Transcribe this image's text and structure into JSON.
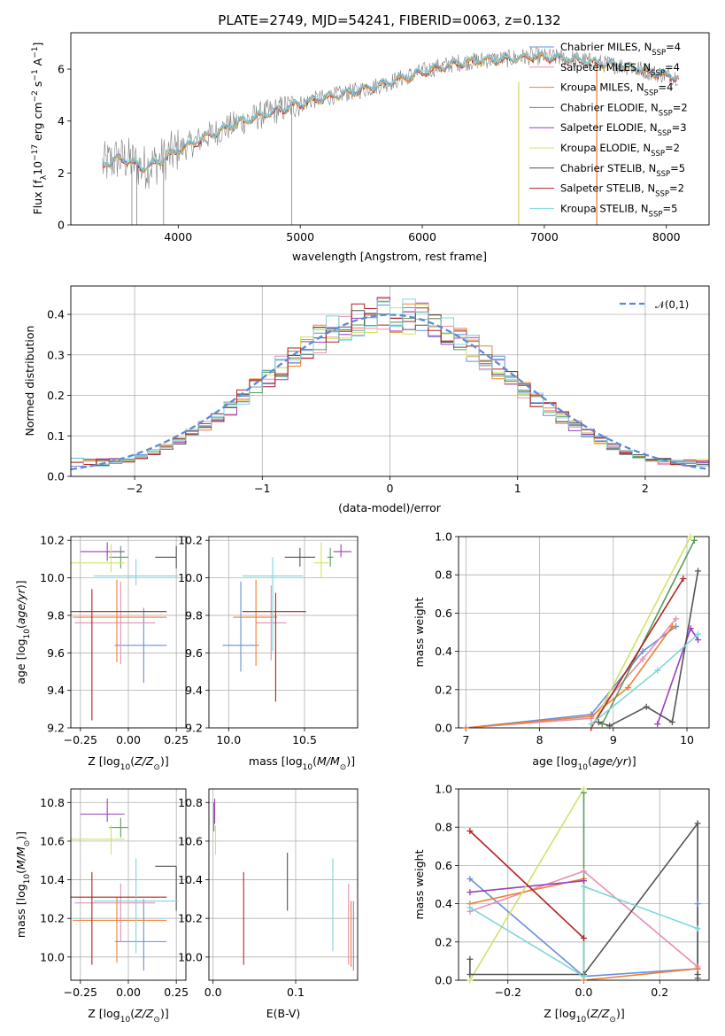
{
  "figure_title": "PLATE=2749, MJD=54241, FIBERID=0063, z=0.132",
  "colors": {
    "Chabrier MILES": "#6a8fd8",
    "Salpeter MILES": "#e58fb4",
    "Kroupa MILES": "#ee8030",
    "Chabrier ELODIE": "#5c9a5c",
    "Salpeter ELODIE": "#9b3fbe",
    "Kroupa ELODIE": "#cfe36a",
    "Chabrier STELIB": "#555555",
    "Salpeter STELIB": "#b22222",
    "Kroupa STELIB": "#7fd6dc",
    "gauss": "#5b8bd6",
    "grid": "#b0b0b0"
  },
  "chart_data": [
    {
      "id": "spectrum",
      "type": "line",
      "title": "PLATE=2749, MJD=54241, FIBERID=0063, z=0.132",
      "xlabel": "wavelength [Angstrom, rest frame]",
      "ylabel": "Flux [f_λ 10^-17 erg cm^-2 s^-1 A^-1]",
      "xlim": [
        3120,
        8350
      ],
      "ylim": [
        0,
        7.4
      ],
      "xticks": [
        4000,
        5000,
        6000,
        7000,
        8000
      ],
      "yticks": [
        0,
        2,
        4,
        6
      ],
      "grid": false,
      "legend_loc": "upper right",
      "legend": [
        {
          "model": "Chabrier MILES",
          "label": "Chabrier MILES, N",
          "sub": "SSP",
          "suffix": "=4"
        },
        {
          "model": "Salpeter MILES",
          "label": "Salpeter MILES, N",
          "sub": "SSP",
          "suffix": "=4"
        },
        {
          "model": "Kroupa MILES",
          "label": "Kroupa MILES, N",
          "sub": "SSP",
          "suffix": "=4"
        },
        {
          "model": "Chabrier ELODIE",
          "label": "Chabrier ELODIE, N",
          "sub": "SSP",
          "suffix": "=2"
        },
        {
          "model": "Salpeter ELODIE",
          "label": "Salpeter ELODIE, N",
          "sub": "SSP",
          "suffix": "=3"
        },
        {
          "model": "Kroupa ELODIE",
          "label": "Kroupa ELODIE, N",
          "sub": "SSP",
          "suffix": "=2"
        },
        {
          "model": "Chabrier STELIB",
          "label": "Chabrier STELIB, N",
          "sub": "SSP",
          "suffix": "=5"
        },
        {
          "model": "Salpeter STELIB",
          "label": "Salpeter STELIB, N",
          "sub": "SSP",
          "suffix": "=2"
        },
        {
          "model": "Kroupa STELIB",
          "label": "Kroupa STELIB, N",
          "sub": "SSP",
          "suffix": "=5"
        }
      ],
      "continuum": {
        "x": [
          3380,
          3500,
          3600,
          3700,
          3800,
          3900,
          4000,
          4100,
          4200,
          4300,
          4400,
          4500,
          4700,
          4900,
          5100,
          5300,
          5500,
          5700,
          5900,
          6100,
          6300,
          6500,
          6700,
          6900,
          7100,
          7300,
          7500,
          7700,
          7900,
          8100
        ],
        "y": [
          2.3,
          2.55,
          2.5,
          2.2,
          2.35,
          2.6,
          2.9,
          3.1,
          3.35,
          3.55,
          3.75,
          3.95,
          4.25,
          4.55,
          4.8,
          5.0,
          5.2,
          5.45,
          5.75,
          6.05,
          6.25,
          6.35,
          6.4,
          6.5,
          6.45,
          6.35,
          6.2,
          6.1,
          5.85,
          5.7
        ]
      }
    },
    {
      "id": "residuals",
      "type": "bar",
      "title": "",
      "xlabel": "(data-model)/error",
      "ylabel": "Normed distribution",
      "xlim": [
        -2.5,
        2.5
      ],
      "ylim": [
        0,
        0.47
      ],
      "xticks": [
        -2,
        -1,
        0,
        1,
        2
      ],
      "yticks": [
        0.0,
        0.1,
        0.2,
        0.3,
        0.4
      ],
      "grid": true,
      "bin_width": 0.1,
      "gauss_label": "𝒩(0,1)",
      "legend_loc": "upper right"
    },
    {
      "id": "age_Z",
      "type": "scatter",
      "xlabel": "Z [log10(Z/Z_sun)]",
      "ylabel": "age [log10(age/yr)]",
      "xlim": [
        -0.3,
        0.3
      ],
      "ylim": [
        9.2,
        10.22
      ],
      "xticks": [
        -0.25,
        0.0,
        0.25
      ],
      "yticks": [
        9.2,
        9.4,
        9.6,
        9.8,
        10.0,
        10.2
      ],
      "grid": true,
      "points": [
        {
          "model": "Chabrier MILES",
          "x": 0.08,
          "xerr": [
            0.15,
            0.12
          ],
          "y": 9.64,
          "yerr": [
            0.2,
            0.2
          ]
        },
        {
          "model": "Salpeter MILES",
          "x": -0.04,
          "xerr": [
            0.24,
            0.18
          ],
          "y": 9.76,
          "yerr": [
            0.22,
            0.22
          ]
        },
        {
          "model": "Kroupa MILES",
          "x": -0.06,
          "xerr": [
            0.23,
            0.26
          ],
          "y": 9.79,
          "yerr": [
            0.24,
            0.2
          ]
        },
        {
          "model": "Chabrier ELODIE",
          "x": -0.04,
          "xerr": [
            0.06,
            0.04
          ],
          "y": 10.11,
          "yerr": [
            0.06,
            0.06
          ]
        },
        {
          "model": "Salpeter ELODIE",
          "x": -0.11,
          "xerr": [
            0.14,
            0.09
          ],
          "y": 10.14,
          "yerr": [
            0.05,
            0.05
          ]
        },
        {
          "model": "Kroupa ELODIE",
          "x": -0.09,
          "xerr": [
            0.21,
            0.07
          ],
          "y": 10.08,
          "yerr": [
            0.05,
            0.1
          ]
        },
        {
          "model": "Chabrier STELIB",
          "x": 0.25,
          "xerr": [
            0.11,
            0.0
          ],
          "y": 10.11,
          "yerr": [
            0.06,
            0.06
          ]
        },
        {
          "model": "Salpeter STELIB",
          "x": -0.19,
          "xerr": [
            0.11,
            0.39
          ],
          "y": 9.82,
          "yerr": [
            0.58,
            0.12
          ]
        },
        {
          "model": "Kroupa STELIB",
          "x": 0.04,
          "xerr": [
            0.22,
            0.22
          ],
          "y": 10.01,
          "yerr": [
            0.05,
            0.09
          ]
        }
      ]
    },
    {
      "id": "age_mass",
      "type": "scatter",
      "xlabel": "mass [log10(M/M_sun)]",
      "ylabel": "",
      "xlim": [
        9.87,
        10.85
      ],
      "ylim": [
        9.2,
        10.22
      ],
      "xticks": [
        10.0,
        10.5
      ],
      "yticks": [
        9.2,
        9.4,
        9.6,
        9.8,
        10.0,
        10.2
      ],
      "grid": true,
      "points": [
        {
          "model": "Chabrier MILES",
          "x": 10.08,
          "xerr": [
            0.12,
            0.12
          ],
          "y": 9.64,
          "yerr": [
            0.14,
            0.34
          ]
        },
        {
          "model": "Salpeter MILES",
          "x": 10.28,
          "xerr": [
            0.1,
            0.1
          ],
          "y": 9.76,
          "yerr": [
            0.2,
            0.2
          ]
        },
        {
          "model": "Kroupa MILES",
          "x": 10.18,
          "xerr": [
            0.15,
            0.14
          ],
          "y": 9.79,
          "yerr": [
            0.26,
            0.2
          ]
        },
        {
          "model": "Chabrier ELODIE",
          "x": 10.67,
          "xerr": [
            0.02,
            0.02
          ],
          "y": 10.11,
          "yerr": [
            0.05,
            0.05
          ]
        },
        {
          "model": "Salpeter ELODIE",
          "x": 10.74,
          "xerr": [
            0.05,
            0.07
          ],
          "y": 10.14,
          "yerr": [
            0.03,
            0.04
          ]
        },
        {
          "model": "Kroupa ELODIE",
          "x": 10.61,
          "xerr": [
            0.05,
            0.05
          ],
          "y": 10.08,
          "yerr": [
            0.08,
            0.11
          ]
        },
        {
          "model": "Chabrier STELIB",
          "x": 10.47,
          "xerr": [
            0.1,
            0.1
          ],
          "y": 10.11,
          "yerr": [
            0.05,
            0.05
          ]
        },
        {
          "model": "Salpeter STELIB",
          "x": 10.31,
          "xerr": [
            0.22,
            0.2
          ],
          "y": 9.82,
          "yerr": [
            0.48,
            0.1
          ]
        },
        {
          "model": "Kroupa STELIB",
          "x": 10.29,
          "xerr": [
            0.2,
            0.2
          ],
          "y": 10.01,
          "yerr": [
            0.4,
            0.1
          ]
        }
      ]
    },
    {
      "id": "massweight_age",
      "type": "line",
      "xlabel": "age [log10(age/yr)]",
      "ylabel": "mass weight",
      "xlim": [
        6.9,
        10.3
      ],
      "ylim": [
        0,
        1.0
      ],
      "xticks": [
        7,
        8,
        9,
        10
      ],
      "yticks": [
        0.0,
        0.2,
        0.4,
        0.6,
        0.8,
        1.0
      ],
      "grid": true,
      "series": [
        {
          "model": "Chabrier MILES",
          "x": [
            7.0,
            8.7,
            9.4,
            9.85
          ],
          "y": [
            0.0,
            0.07,
            0.4,
            0.53
          ]
        },
        {
          "model": "Salpeter MILES",
          "x": [
            7.0,
            8.7,
            9.4,
            9.85
          ],
          "y": [
            0.0,
            0.05,
            0.36,
            0.57
          ]
        },
        {
          "model": "Kroupa MILES",
          "x": [
            7.0,
            8.7,
            9.2,
            9.8
          ],
          "y": [
            0.0,
            0.06,
            0.21,
            0.53
          ]
        },
        {
          "model": "Chabrier ELODIE",
          "x": [
            8.85,
            10.1
          ],
          "y": [
            0.02,
            0.98
          ]
        },
        {
          "model": "Salpeter ELODIE",
          "x": [
            9.6,
            10.05,
            10.15
          ],
          "y": [
            0.02,
            0.52,
            0.46
          ]
        },
        {
          "model": "Kroupa ELODIE",
          "x": [
            8.7,
            10.05
          ],
          "y": [
            0.0,
            1.0
          ]
        },
        {
          "model": "Chabrier STELIB",
          "x": [
            8.8,
            8.95,
            9.45,
            9.8,
            10.15
          ],
          "y": [
            0.03,
            0.01,
            0.11,
            0.03,
            0.82
          ]
        },
        {
          "model": "Salpeter STELIB",
          "x": [
            8.7,
            9.95
          ],
          "y": [
            0.0,
            0.78
          ]
        },
        {
          "model": "Kroupa STELIB",
          "x": [
            8.7,
            9.6,
            10.15
          ],
          "y": [
            0.02,
            0.3,
            0.49
          ]
        }
      ]
    },
    {
      "id": "mass_Z",
      "type": "scatter",
      "xlabel": "Z [log10(Z/Z_sun)]",
      "ylabel": "mass [log10(M/M_sun)]",
      "xlim": [
        -0.3,
        0.3
      ],
      "ylim": [
        9.88,
        10.87
      ],
      "xticks": [
        -0.25,
        0.0,
        0.25
      ],
      "yticks": [
        10.0,
        10.2,
        10.4,
        10.6,
        10.8
      ],
      "grid": true,
      "points": [
        {
          "model": "Chabrier MILES",
          "x": 0.08,
          "xerr": [
            0.15,
            0.12
          ],
          "y": 10.08,
          "yerr": [
            0.15,
            0.22
          ]
        },
        {
          "model": "Salpeter MILES",
          "x": -0.04,
          "xerr": [
            0.24,
            0.18
          ],
          "y": 10.28,
          "yerr": [
            0.2,
            0.1
          ]
        },
        {
          "model": "Kroupa MILES",
          "x": -0.06,
          "xerr": [
            0.23,
            0.26
          ],
          "y": 10.19,
          "yerr": [
            0.22,
            0.12
          ]
        },
        {
          "model": "Chabrier ELODIE",
          "x": -0.04,
          "xerr": [
            0.06,
            0.04
          ],
          "y": 10.67,
          "yerr": [
            0.05,
            0.05
          ]
        },
        {
          "model": "Salpeter ELODIE",
          "x": -0.11,
          "xerr": [
            0.14,
            0.09
          ],
          "y": 10.74,
          "yerr": [
            0.04,
            0.08
          ]
        },
        {
          "model": "Kroupa ELODIE",
          "x": -0.09,
          "xerr": [
            0.21,
            0.07
          ],
          "y": 10.61,
          "yerr": [
            0.08,
            0.07
          ]
        },
        {
          "model": "Chabrier STELIB",
          "x": 0.25,
          "xerr": [
            0.11,
            0.0
          ],
          "y": 10.47,
          "yerr": [
            0.23,
            0.0
          ]
        },
        {
          "model": "Salpeter STELIB",
          "x": -0.19,
          "xerr": [
            0.11,
            0.39
          ],
          "y": 10.31,
          "yerr": [
            0.35,
            0.13
          ]
        },
        {
          "model": "Kroupa STELIB",
          "x": 0.04,
          "xerr": [
            0.22,
            0.22
          ],
          "y": 10.29,
          "yerr": [
            0.27,
            0.22
          ]
        }
      ]
    },
    {
      "id": "mass_ebv",
      "type": "scatter",
      "xlabel": "E(B-V)",
      "ylabel": "",
      "xlim": [
        -0.005,
        0.175
      ],
      "ylim": [
        9.88,
        10.87
      ],
      "xticks": [
        0.0,
        0.1
      ],
      "yticks": [
        10.0,
        10.2,
        10.4,
        10.6,
        10.8
      ],
      "grid": true,
      "points": [
        {
          "model": "Chabrier MILES",
          "x": 0.17,
          "xerr": [
            0,
            0
          ],
          "y": 10.13,
          "yerr": [
            0.2,
            0.16
          ]
        },
        {
          "model": "Salpeter MILES",
          "x": 0.164,
          "xerr": [
            0,
            0
          ],
          "y": 10.16,
          "yerr": [
            0.2,
            0.22
          ]
        },
        {
          "model": "Kroupa MILES",
          "x": 0.167,
          "xerr": [
            0,
            0
          ],
          "y": 10.12,
          "yerr": [
            0.17,
            0.17
          ]
        },
        {
          "model": "Chabrier ELODIE",
          "x": 0.001,
          "xerr": [
            0,
            0
          ],
          "y": 10.72,
          "yerr": [
            0.07,
            0.08
          ]
        },
        {
          "model": "Salpeter ELODIE",
          "x": 0.002,
          "xerr": [
            0,
            0
          ],
          "y": 10.74,
          "yerr": [
            0.05,
            0.08
          ]
        },
        {
          "model": "Kroupa ELODIE",
          "x": 0.003,
          "xerr": [
            0,
            0
          ],
          "y": 10.61,
          "yerr": [
            0.08,
            0.07
          ]
        },
        {
          "model": "Chabrier STELIB",
          "x": 0.09,
          "xerr": [
            0,
            0
          ],
          "y": 10.39,
          "yerr": [
            0.15,
            0.15
          ]
        },
        {
          "model": "Salpeter STELIB",
          "x": 0.037,
          "xerr": [
            0,
            0
          ],
          "y": 10.2,
          "yerr": [
            0.24,
            0.24
          ]
        },
        {
          "model": "Kroupa STELIB",
          "x": 0.145,
          "xerr": [
            0,
            0
          ],
          "y": 10.27,
          "yerr": [
            0.24,
            0.24
          ]
        }
      ]
    },
    {
      "id": "massweight_Z",
      "type": "line",
      "xlabel": "Z [log10(Z/Z_sun)]",
      "ylabel": "mass weight",
      "xlim": [
        -0.33,
        0.33
      ],
      "ylim": [
        0,
        1.0
      ],
      "xticks": [
        -0.2,
        0.0,
        0.2
      ],
      "yticks": [
        0.0,
        0.2,
        0.4,
        0.6,
        0.8,
        1.0
      ],
      "grid": true,
      "series": [
        {
          "model": "Chabrier MILES",
          "x": [
            -0.3,
            0.0,
            0.3,
            0.3
          ],
          "y": [
            0.53,
            0.02,
            0.06,
            0.4
          ]
        },
        {
          "model": "Salpeter MILES",
          "x": [
            -0.3,
            0.0,
            0.3
          ],
          "y": [
            0.36,
            0.57,
            0.07
          ]
        },
        {
          "model": "Kroupa MILES",
          "x": [
            -0.3,
            0.0,
            0.0,
            0.3
          ],
          "y": [
            0.4,
            0.53,
            0.0,
            0.06
          ]
        },
        {
          "model": "Chabrier ELODIE",
          "x": [
            0.0,
            0.0
          ],
          "y": [
            0.02,
            0.98
          ]
        },
        {
          "model": "Salpeter ELODIE",
          "x": [
            -0.3,
            0.0
          ],
          "y": [
            0.46,
            0.52
          ]
        },
        {
          "model": "Kroupa ELODIE",
          "x": [
            -0.3,
            0.0
          ],
          "y": [
            0.0,
            1.0
          ]
        },
        {
          "model": "Chabrier STELIB",
          "x": [
            -0.3,
            -0.3,
            0.0,
            0.3,
            0.3,
            0.3
          ],
          "y": [
            0.11,
            0.03,
            0.03,
            0.82,
            0.03,
            0.01
          ]
        },
        {
          "model": "Salpeter STELIB",
          "x": [
            -0.3,
            0.0
          ],
          "y": [
            0.78,
            0.22
          ]
        },
        {
          "model": "Kroupa STELIB",
          "x": [
            -0.3,
            0.0,
            0.0,
            0.3
          ],
          "y": [
            0.38,
            0.02,
            0.49,
            0.27
          ]
        }
      ]
    }
  ]
}
